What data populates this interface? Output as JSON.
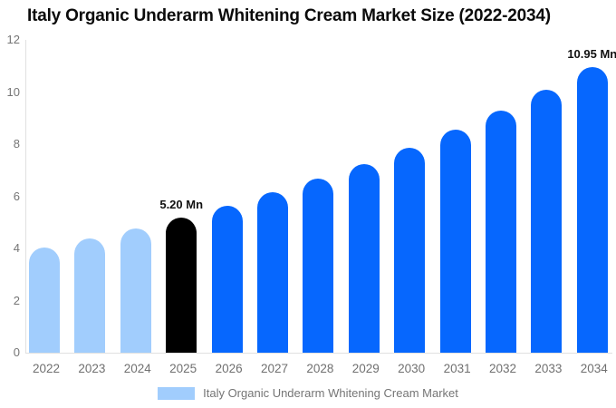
{
  "title": "Italy Organic Underarm Whitening Cream Market Size (2022-2034)",
  "legend": {
    "label": "Italy Organic Underarm Whitening Cream Market",
    "swatch_color": "#A1CDFD"
  },
  "colors": {
    "bar_light_blue": "#A1CDFD",
    "bar_blue": "#0667FE",
    "bar_highlight_black": "#000000",
    "axis_line": "#E0E0E0",
    "text_gray": "#757575",
    "title_text": "#0B0B0B"
  },
  "chart_data": {
    "type": "bar",
    "title": "Italy Organic Underarm Whitening Cream Market Size (2022-2034)",
    "unit": "Mn",
    "categories": [
      "2022",
      "2023",
      "2024",
      "2025",
      "2026",
      "2027",
      "2028",
      "2029",
      "2030",
      "2031",
      "2032",
      "2033",
      "2034"
    ],
    "values": [
      4.05,
      4.4,
      4.78,
      5.2,
      5.65,
      6.14,
      6.67,
      7.24,
      7.87,
      8.55,
      9.28,
      10.08,
      10.95
    ],
    "bar_colors": [
      "#A1CDFD",
      "#A1CDFD",
      "#A1CDFD",
      "#000000",
      "#0667FE",
      "#0667FE",
      "#0667FE",
      "#0667FE",
      "#0667FE",
      "#0667FE",
      "#0667FE",
      "#0667FE",
      "#0667FE"
    ],
    "data_labels": [
      {
        "category": "2025",
        "text": "5.20 Mn"
      },
      {
        "category": "2034",
        "text": "10.95 Mn"
      }
    ],
    "ylim": [
      0,
      12
    ],
    "yticks": [
      0,
      2,
      4,
      6,
      8,
      10,
      12
    ],
    "grid": false,
    "legend_position": "bottom"
  }
}
